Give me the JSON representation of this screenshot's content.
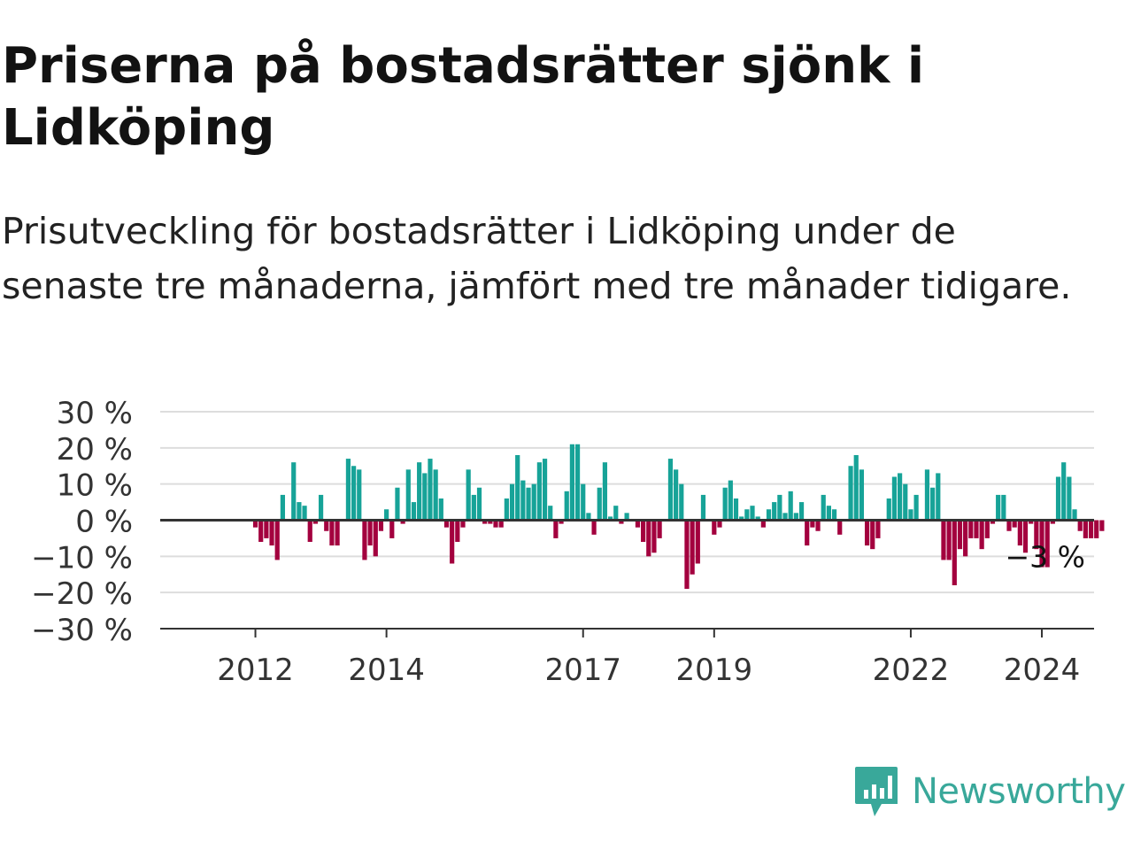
{
  "title": "Priserna på bostadsrätter sjönk i Lidköping",
  "subtitle": "Prisutveckling för bostadsrätter i Lidköping under de senaste tre månaderna, jämfört med tre månader tidigare.",
  "brand": {
    "name": "Newsworthy",
    "icon": "newsworthy-logo-icon"
  },
  "colors": {
    "positive": "#17a398",
    "negative": "#a3003e",
    "grid": "#dddddd",
    "zero": "#333333",
    "text": "#121212",
    "brand": "#39a89a"
  },
  "chart_data": {
    "type": "bar",
    "title": "",
    "xlabel": "",
    "ylabel": "",
    "ylim": [
      -30,
      30
    ],
    "y_ticks": [
      30,
      20,
      10,
      0,
      -10,
      -20,
      -30
    ],
    "y_tick_labels": [
      "30 %",
      "20 %",
      "10 %",
      "0 %",
      "−10 %",
      "−20 %",
      "−30 %"
    ],
    "x_tick_labels": [
      "2012",
      "2014",
      "2017",
      "2019",
      "2022",
      "2024"
    ],
    "x_tick_dates": [
      "2012-01",
      "2014-01",
      "2017-01",
      "2019-01",
      "2022-01",
      "2024-01"
    ],
    "start_month": "2011-01",
    "grid": true,
    "annotation": {
      "label": "−3 %",
      "month": "2025-05",
      "value": -3
    },
    "series": [
      {
        "values": [
          null,
          null,
          null,
          null,
          null,
          null,
          null,
          null,
          null,
          null,
          null,
          null,
          -2,
          -6,
          -5,
          -7,
          -11,
          7,
          0,
          16,
          5,
          4,
          -6,
          -1,
          7,
          -3,
          -7,
          -7,
          0,
          17,
          15,
          14,
          -11,
          -7,
          -10,
          -3,
          3,
          -5,
          9,
          -1,
          14,
          5,
          16,
          13,
          17,
          14,
          6,
          -2,
          -12,
          -6,
          -2,
          14,
          7,
          9,
          -1,
          -1,
          -2,
          -2,
          6,
          10,
          18,
          11,
          9,
          10,
          16,
          17,
          4,
          -5,
          -1,
          8,
          21,
          21,
          10,
          2,
          -4,
          9,
          16,
          1,
          4,
          -1,
          2,
          0,
          -2,
          -6,
          -10,
          -9,
          -5,
          0,
          17,
          14,
          10,
          -19,
          -15,
          -12,
          7,
          0,
          -4,
          -2,
          9,
          11,
          6,
          1,
          3,
          4,
          1,
          -2,
          3,
          5,
          7,
          2,
          8,
          2,
          5,
          -7,
          -2,
          -3,
          7,
          4,
          3,
          -4,
          0,
          15,
          18,
          14,
          -7,
          -8,
          -5,
          0,
          6,
          12,
          13,
          10,
          3,
          7,
          0,
          14,
          9,
          13,
          -11,
          -11,
          -18,
          -8,
          -10,
          -5,
          -5,
          -8,
          -5,
          -1,
          7,
          7,
          -3,
          -2,
          -7,
          -9,
          -1,
          -8,
          -13,
          -13,
          -1,
          12,
          16,
          12,
          3,
          -3,
          -5,
          -5,
          -5,
          -3
        ]
      }
    ]
  }
}
